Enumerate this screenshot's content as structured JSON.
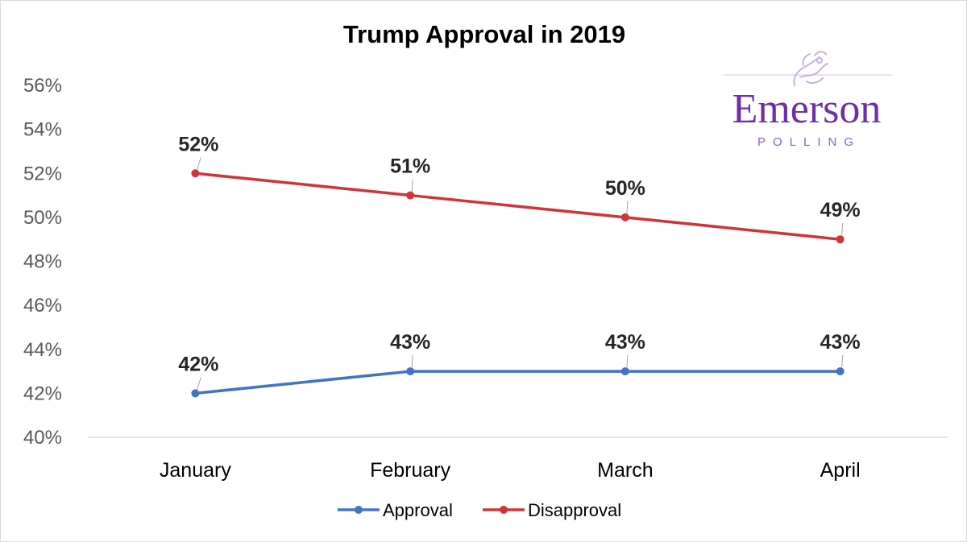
{
  "logo": {
    "word": "Emerson",
    "sub": "POLLING",
    "color": "#6f2da8"
  },
  "chart_data": {
    "type": "line",
    "title": "Trump Approval in 2019",
    "xlabel": "",
    "ylabel": "",
    "categories": [
      "January",
      "February",
      "March",
      "April"
    ],
    "y_ticks": [
      "40%",
      "42%",
      "44%",
      "46%",
      "48%",
      "50%",
      "52%",
      "54%",
      "56%"
    ],
    "ylim": [
      40,
      56
    ],
    "grid": false,
    "legend_position": "bottom",
    "series": [
      {
        "name": "Approval",
        "color": "#4472c4",
        "values": [
          42,
          43,
          43,
          43
        ],
        "labels": [
          "42%",
          "43%",
          "43%",
          "43%"
        ]
      },
      {
        "name": "Disapproval",
        "color": "#d13438",
        "values": [
          52,
          51,
          50,
          49
        ],
        "labels": [
          "52%",
          "51%",
          "50%",
          "49%"
        ]
      }
    ]
  }
}
